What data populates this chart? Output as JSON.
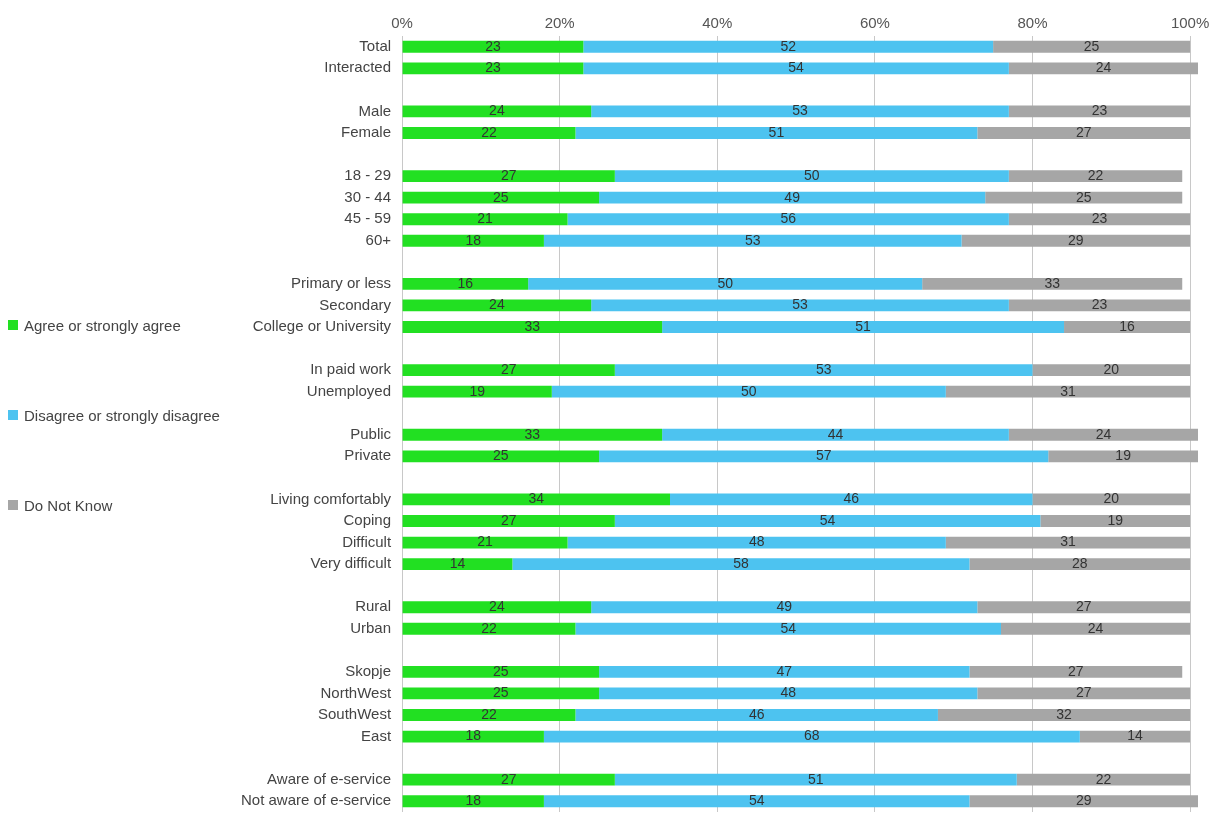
{
  "chart_data": {
    "type": "bar",
    "orientation": "horizontal",
    "stacked": true,
    "data_labels": true,
    "grid": "x",
    "legend": "left",
    "categories": [
      "Total",
      "Interacted",
      null,
      "Male",
      "Female",
      null,
      "18 - 29",
      "30 - 44",
      "45 - 59",
      "60+",
      null,
      "Primary or less",
      "Secondary",
      "College or University",
      null,
      "In paid work",
      "Unemployed",
      null,
      "Public",
      "Private",
      null,
      "Living comfortably",
      "Coping",
      "Difficult",
      "Very difficult",
      null,
      "Rural",
      "Urban",
      null,
      "Skopje",
      "NorthWest",
      "SouthWest",
      "East",
      null,
      "Aware of e-service",
      "Not aware of e-service"
    ],
    "xlim": [
      0,
      101
    ],
    "xticks": [
      {
        "value": 0,
        "label": "0%"
      },
      {
        "value": 20,
        "label": "20%"
      },
      {
        "value": 40,
        "label": "40%"
      },
      {
        "value": 60,
        "label": "60%"
      },
      {
        "value": 80,
        "label": "80%"
      },
      {
        "value": 100,
        "label": "100%"
      }
    ],
    "series": [
      {
        "name": "Agree or strongly agree",
        "color": "#22e022",
        "values": [
          23,
          23,
          null,
          24,
          22,
          null,
          27,
          25,
          21,
          18,
          null,
          16,
          24,
          33,
          null,
          27,
          19,
          null,
          33,
          25,
          null,
          34,
          27,
          21,
          14,
          null,
          24,
          22,
          null,
          25,
          25,
          22,
          18,
          null,
          27,
          18
        ]
      },
      {
        "name": "Disagree or strongly disagree",
        "color": "#4dc3f0",
        "values": [
          52,
          54,
          null,
          53,
          51,
          null,
          50,
          49,
          56,
          53,
          null,
          50,
          53,
          51,
          null,
          53,
          50,
          null,
          44,
          57,
          null,
          46,
          54,
          48,
          58,
          null,
          49,
          54,
          null,
          47,
          48,
          46,
          68,
          null,
          51,
          54
        ]
      },
      {
        "name": "Do Not Know",
        "color": "#a6a6a6",
        "values": [
          25,
          24,
          null,
          23,
          27,
          null,
          22,
          25,
          23,
          29,
          null,
          33,
          23,
          16,
          null,
          20,
          31,
          null,
          24,
          19,
          null,
          20,
          19,
          31,
          28,
          null,
          27,
          24,
          null,
          27,
          27,
          32,
          14,
          null,
          22,
          29
        ]
      }
    ]
  }
}
